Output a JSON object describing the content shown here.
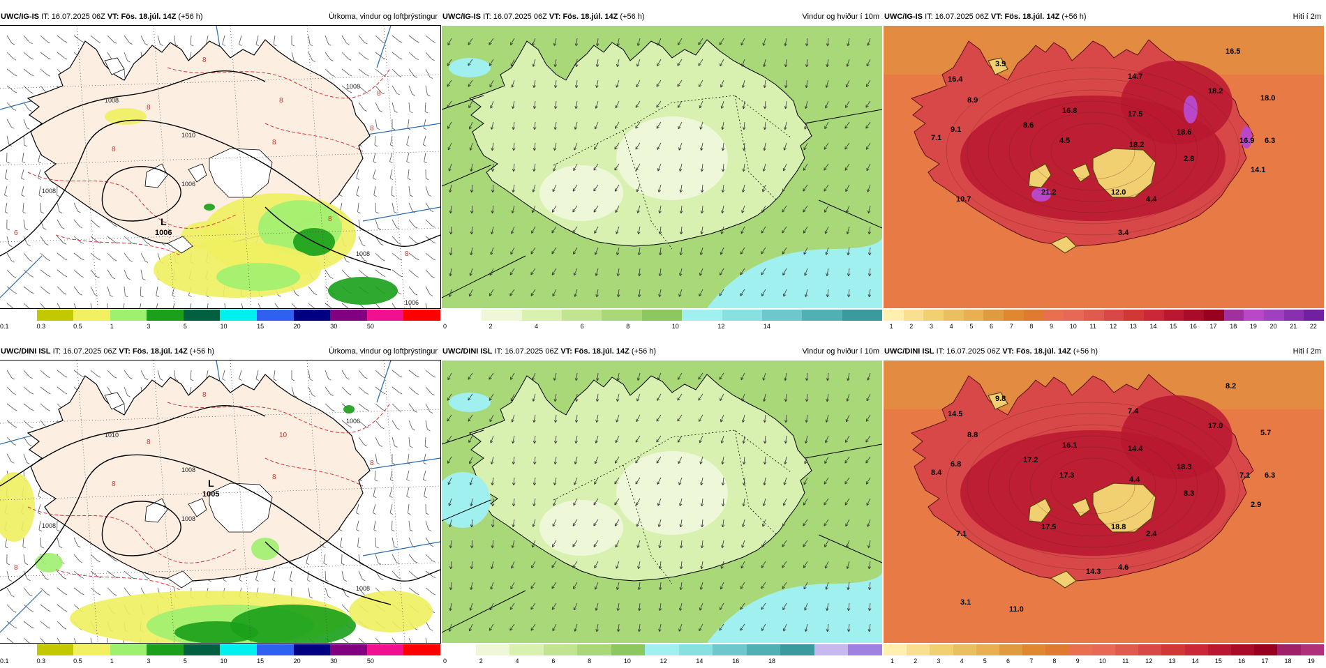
{
  "panels": [
    {
      "id": "ig-precip",
      "model": "UWC/IG-IS",
      "it_label": "IT:",
      "it_value": "16.07.2025 06Z",
      "vt_label": "VT:",
      "vt_value": "Fös. 18.júl. 14Z",
      "lead": "(+56 h)",
      "title": "Úrkoma, vindur og loftþrýstingur",
      "type": "precip",
      "colorbar": {
        "colors": [
          "#ffffff",
          "#c4c800",
          "#f0f060",
          "#a0f070",
          "#1aa01a",
          "#006040",
          "#00f0f0",
          "#3060f0",
          "#000080",
          "#800080",
          "#f01090",
          "#ff0000"
        ],
        "ticks": [
          "0.1",
          "0.3",
          "0.5",
          "1",
          "3",
          "5",
          "10",
          "15",
          "20",
          "30",
          "50"
        ]
      },
      "low_pressure": {
        "symbol": "L",
        "value": "1006"
      },
      "isobar_labels": [
        "1008",
        "1010",
        "1008",
        "1008",
        "1006",
        "1008",
        "1006"
      ],
      "red_labels": [
        "8",
        "8",
        "8",
        "8",
        "8",
        "8",
        "6",
        "8",
        "8",
        "8"
      ]
    },
    {
      "id": "ig-wind",
      "model": "UWC/IG-IS",
      "it_label": "IT:",
      "it_value": "16.07.2025 06Z",
      "vt_label": "VT:",
      "vt_value": "Fös. 18.júl. 14Z",
      "lead": "(+56 h)",
      "title": "Vindur og hviður í 10m",
      "type": "wind",
      "colorbar": {
        "colors": [
          "#ffffff",
          "#eef8d8",
          "#d8f0b0",
          "#c0e490",
          "#a8d878",
          "#8cc860",
          "#a0f0f0",
          "#88e0e0",
          "#6cc8cc",
          "#50b0b4",
          "#3a9a9e"
        ],
        "ticks": [
          "0",
          "2",
          "4",
          "6",
          "8",
          "10",
          "12",
          "14"
        ]
      }
    },
    {
      "id": "ig-temp",
      "model": "UWC/IG-IS",
      "it_label": "IT:",
      "it_value": "16.07.2025 06Z",
      "vt_label": "VT:",
      "vt_value": "Fös. 18.júl. 14Z",
      "lead": "(+56 h)",
      "title": "Hiti í 2m",
      "type": "temp",
      "colorbar": {
        "colors": [
          "#fff0b0",
          "#f8e090",
          "#f0d070",
          "#e8c060",
          "#e8b050",
          "#e09a40",
          "#e08830",
          "#e07a30",
          "#e87050",
          "#e86858",
          "#e05a50",
          "#d84848",
          "#d03838",
          "#c82838",
          "#b81830",
          "#a80c28",
          "#980020",
          "#a030a0",
          "#b848c8",
          "#a040c0",
          "#8830b0",
          "#7020a0"
        ],
        "ticks": [
          "1",
          "2",
          "3",
          "4",
          "5",
          "6",
          "7",
          "8",
          "9",
          "10",
          "11",
          "12",
          "13",
          "14",
          "15",
          "16",
          "17",
          "18",
          "19",
          "20",
          "21",
          "22"
        ]
      },
      "values": [
        "3.9",
        "16.5",
        "16.4",
        "14.7",
        "8.9",
        "18.2",
        "16.8",
        "17.5",
        "18.0",
        "18.6",
        "9.1",
        "8.6",
        "16.9",
        "7.1",
        "4.5",
        "18.2",
        "2.8",
        "6.3",
        "14.1",
        "10.7",
        "21.2",
        "12.0",
        "4.4",
        "3.4"
      ]
    },
    {
      "id": "dini-precip",
      "model": "UWC/DINI ISL",
      "it_label": "IT:",
      "it_value": "16.07.2025 06Z",
      "vt_label": "VT:",
      "vt_value": "Fös. 18.júl. 14Z",
      "lead": "(+56 h)",
      "title": "Úrkoma, vindur og loftþrýstingur",
      "type": "precip",
      "colorbar": {
        "colors": [
          "#ffffff",
          "#c4c800",
          "#f0f060",
          "#a0f070",
          "#1aa01a",
          "#006040",
          "#00f0f0",
          "#3060f0",
          "#000080",
          "#800080",
          "#f01090",
          "#ff0000"
        ],
        "ticks": [
          "0.1",
          "0.3",
          "0.5",
          "1",
          "3",
          "5",
          "10",
          "15",
          "20",
          "30",
          "50"
        ]
      },
      "low_pressure": {
        "symbol": "L",
        "value": "1005"
      },
      "isobar_labels": [
        "1010",
        "1008",
        "1008",
        "1006",
        "1008",
        "1008"
      ],
      "red_labels": [
        "8",
        "10",
        "8",
        "8",
        "8",
        "8",
        "8"
      ]
    },
    {
      "id": "dini-wind",
      "model": "UWC/DINI ISL",
      "it_label": "IT:",
      "it_value": "16.07.2025 06Z",
      "vt_label": "VT:",
      "vt_value": "Fös. 18.júl. 14Z",
      "lead": "(+56 h)",
      "title": "Vindur og hviður í 10m",
      "type": "wind",
      "colorbar": {
        "colors": [
          "#ffffff",
          "#eef8d8",
          "#d8f0b0",
          "#c0e490",
          "#a8d878",
          "#8cc860",
          "#a0f0f0",
          "#88e0e0",
          "#6cc8cc",
          "#50b0b4",
          "#3a9a9e",
          "#c8b8f0",
          "#a080e0"
        ],
        "ticks": [
          "0",
          "2",
          "4",
          "6",
          "8",
          "10",
          "12",
          "14",
          "16",
          "18"
        ]
      }
    },
    {
      "id": "dini-temp",
      "model": "UWC/DINI ISL",
      "it_label": "IT:",
      "it_value": "16.07.2025 06Z",
      "vt_label": "VT:",
      "vt_value": "Fös. 18.júl. 14Z",
      "lead": "(+56 h)",
      "title": "Hiti í 2m",
      "type": "temp",
      "colorbar": {
        "colors": [
          "#fff0b0",
          "#f8e090",
          "#f0d070",
          "#e8c060",
          "#e8b050",
          "#e09a40",
          "#e08830",
          "#e07a30",
          "#e87050",
          "#e86858",
          "#e05a50",
          "#d84848",
          "#d03838",
          "#c82838",
          "#b81830",
          "#a80c28",
          "#980020",
          "#a0206a",
          "#b0307a"
        ],
        "ticks": [
          "1",
          "2",
          "3",
          "4",
          "5",
          "6",
          "7",
          "8",
          "9",
          "10",
          "11",
          "12",
          "13",
          "14",
          "15",
          "16",
          "17",
          "18",
          "19"
        ]
      },
      "values": [
        "9.8",
        "8.2",
        "14.5",
        "7.4",
        "8.8",
        "17.0",
        "16.1",
        "14.4",
        "5.7",
        "18.3",
        "6.8",
        "17.2",
        "7.1",
        "8.4",
        "17.3",
        "4.4",
        "8.3",
        "6.3",
        "2.9",
        "7.1",
        "17.5",
        "18.8",
        "2.4",
        "4.6",
        "14.3",
        "3.1",
        "11.0"
      ]
    }
  ]
}
